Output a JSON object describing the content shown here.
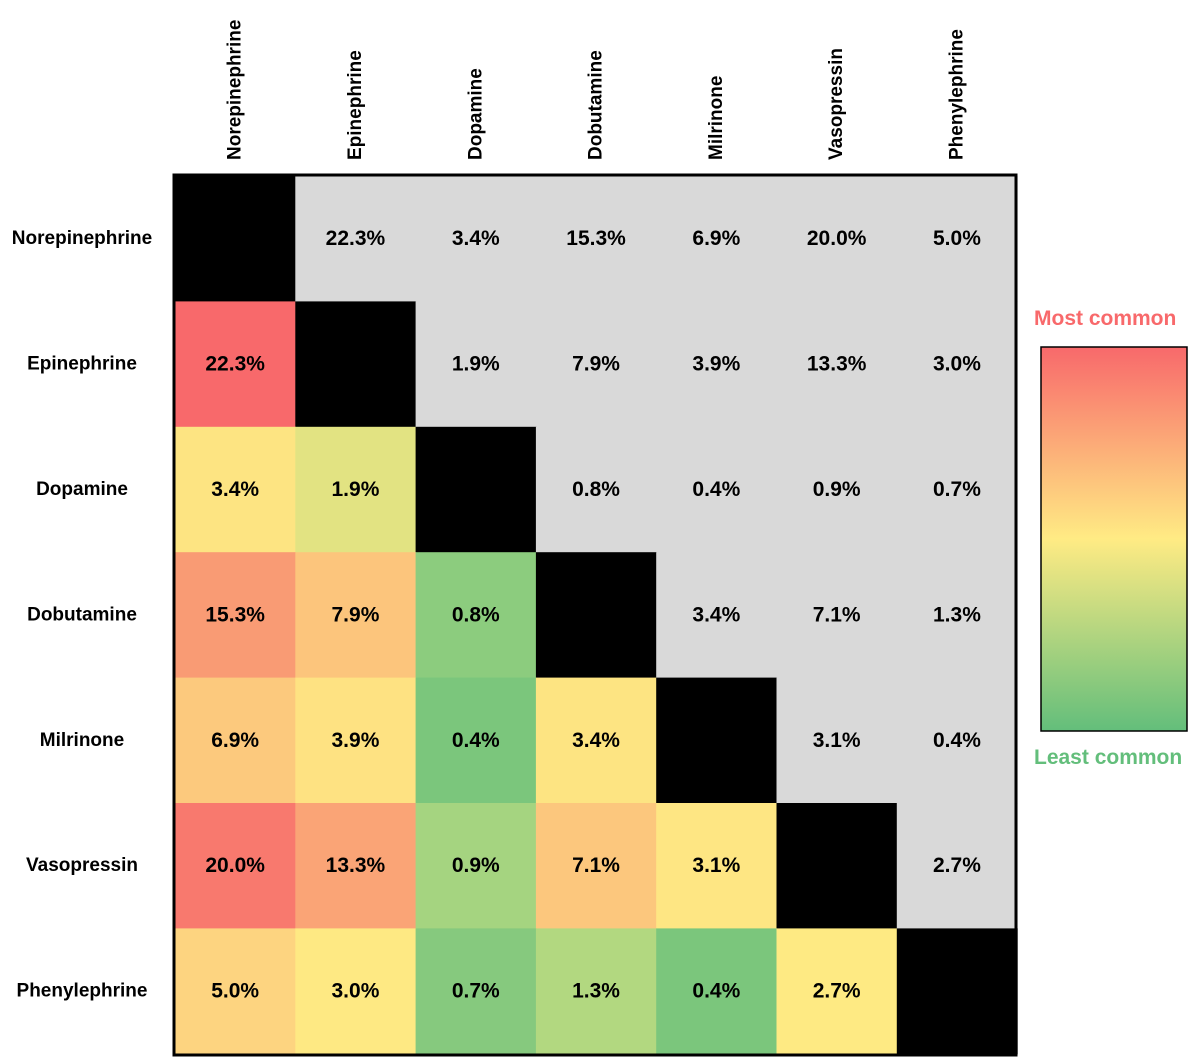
{
  "chart_data": {
    "type": "heatmap",
    "categories": [
      "Norepinephrine",
      "Epinephrine",
      "Dopamine",
      "Dobutamine",
      "Milrinone",
      "Vasopressin",
      "Phenylephrine"
    ],
    "values": [
      [
        null,
        22.3,
        3.4,
        15.3,
        6.9,
        20.0,
        5.0
      ],
      [
        22.3,
        null,
        1.9,
        7.9,
        3.9,
        13.3,
        3.0
      ],
      [
        3.4,
        1.9,
        null,
        0.8,
        0.4,
        0.9,
        0.7
      ],
      [
        15.3,
        7.9,
        0.8,
        null,
        3.4,
        7.1,
        1.3
      ],
      [
        6.9,
        3.9,
        0.4,
        3.4,
        null,
        3.1,
        0.4
      ],
      [
        20.0,
        13.3,
        0.9,
        7.1,
        3.1,
        null,
        2.7
      ],
      [
        5.0,
        3.0,
        0.7,
        1.3,
        0.4,
        2.7,
        null
      ]
    ],
    "labels": [
      [
        "",
        "22.3%",
        "3.4%",
        "15.3%",
        "6.9%",
        "20.0%",
        "5.0%"
      ],
      [
        "22.3%",
        "",
        "1.9%",
        "7.9%",
        "3.9%",
        "13.3%",
        "3.0%"
      ],
      [
        "3.4%",
        "1.9%",
        "",
        "0.8%",
        "0.4%",
        "0.9%",
        "0.7%"
      ],
      [
        "15.3%",
        "7.9%",
        "0.8%",
        "",
        "3.4%",
        "7.1%",
        "1.3%"
      ],
      [
        "6.9%",
        "3.9%",
        "0.4%",
        "3.4%",
        "",
        "3.1%",
        "0.4%"
      ],
      [
        "20.0%",
        "13.3%",
        "0.9%",
        "7.1%",
        "3.1%",
        "",
        "2.7%"
      ],
      [
        "5.0%",
        "3.0%",
        "0.7%",
        "1.3%",
        "0.4%",
        "2.7%",
        ""
      ]
    ],
    "cell_colors": [
      [
        "#000000",
        "#d9d9d9",
        "#d9d9d9",
        "#d9d9d9",
        "#d9d9d9",
        "#d9d9d9",
        "#d9d9d9"
      ],
      [
        "#f8696b",
        "#000000",
        "#d9d9d9",
        "#d9d9d9",
        "#d9d9d9",
        "#d9d9d9",
        "#d9d9d9"
      ],
      [
        "#fde482",
        "#e2e382",
        "#000000",
        "#d9d9d9",
        "#d9d9d9",
        "#d9d9d9",
        "#d9d9d9"
      ],
      [
        "#f99b74",
        "#fcc57c",
        "#8ccc7e",
        "#000000",
        "#d9d9d9",
        "#d9d9d9",
        "#d9d9d9"
      ],
      [
        "#fcc97d",
        "#fee282",
        "#7bc67c",
        "#fde482",
        "#000000",
        "#d9d9d9",
        "#d9d9d9"
      ],
      [
        "#f8796e",
        "#faa476",
        "#a5d480",
        "#fcc77d",
        "#fee683",
        "#000000",
        "#d9d9d9"
      ],
      [
        "#fdd480",
        "#fee983",
        "#86c97e",
        "#b2d880",
        "#7bc67c",
        "#feea83",
        "#000000"
      ]
    ],
    "legend": {
      "high_label": "Most common",
      "low_label": "Least common",
      "high_color": "#f8696b",
      "mid_color": "#ffeb84",
      "low_color": "#63be7b"
    }
  }
}
